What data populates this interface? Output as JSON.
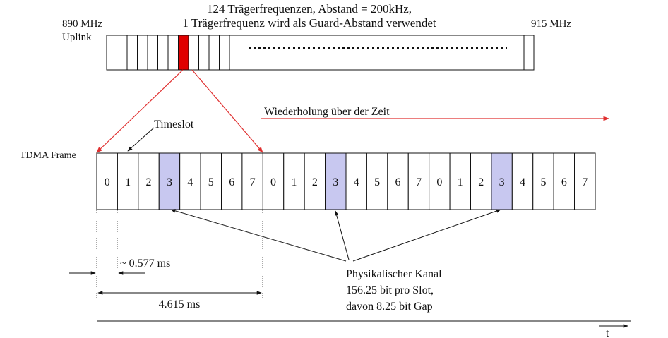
{
  "header": {
    "line1": "124 Trägerfrequenzen, Abstand = 200kHz,",
    "line2": "1 Trägerfrequenz wird als Guard-Abstand verwendet",
    "freq_low": "890 MHz",
    "direction": "Uplink",
    "freq_high": "915 MHz"
  },
  "band": {
    "visible_carriers": 12,
    "highlighted_carrier_index": 7,
    "highlight_color": "#e00000"
  },
  "repeat_label": "Wiederholung über der Zeit",
  "timeslot_label": "Timeslot",
  "frame_label": "TDMA Frame",
  "frames": [
    {
      "slots": [
        "0",
        "1",
        "2",
        "3",
        "4",
        "5",
        "6",
        "7"
      ]
    },
    {
      "slots": [
        "0",
        "1",
        "2",
        "3",
        "4",
        "5",
        "6",
        "7"
      ]
    },
    {
      "slots": [
        "0",
        "1",
        "2",
        "3",
        "4",
        "5",
        "6",
        "7"
      ]
    }
  ],
  "physical_slot_index": 3,
  "physical_slot_color": "#c8c8f0",
  "slot_duration": "~ 0.577 ms",
  "frame_duration": "4.615 ms",
  "channel_note": {
    "line1": "Physikalischer Kanal",
    "line2": "156.25 bit pro Slot,",
    "line3": "davon 8.25 bit Gap"
  },
  "time_axis_label": "t",
  "colors": {
    "line": "#111111",
    "accent_red": "#e03030"
  }
}
